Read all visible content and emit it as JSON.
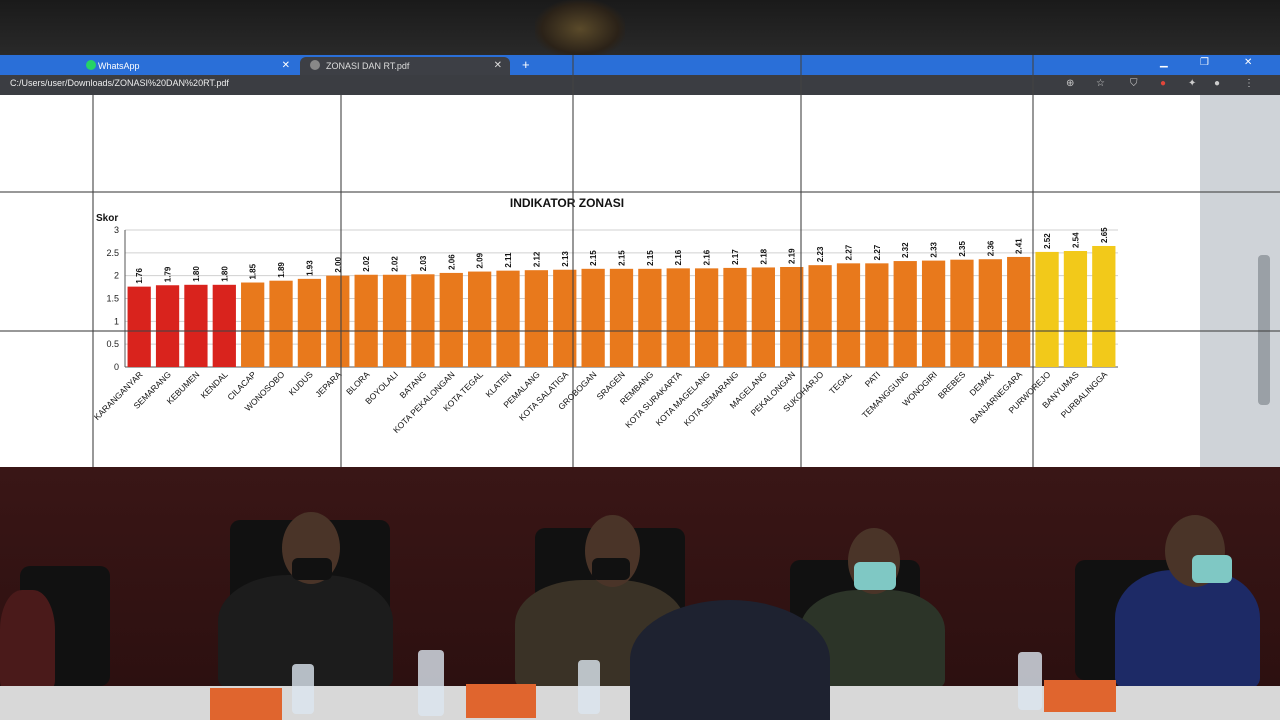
{
  "browser": {
    "tabs": [
      {
        "label": "WhatsApp"
      },
      {
        "label": "ZONASI DAN RT.pdf"
      }
    ],
    "url": "C:/Users/user/Downloads/ZONASI%20DAN%20RT.pdf",
    "new_tab_symbol": "+"
  },
  "chart_data": {
    "type": "bar",
    "title": "INDIKATOR ZONASI",
    "ylabel": "Skor",
    "ylim": [
      0,
      3
    ],
    "yticks": [
      "0",
      "0.5",
      "1",
      "1.5",
      "2",
      "2.5",
      "3"
    ],
    "categories": [
      "KARANGANYAR",
      "SEMARANG",
      "KEBUMEN",
      "KENDAL",
      "CILACAP",
      "WONOSOBO",
      "KUDUS",
      "JEPARA",
      "BLORA",
      "BOYOLALI",
      "BATANG",
      "KOTA PEKALONGAN",
      "KOTA TEGAL",
      "KLATEN",
      "PEMALANG",
      "KOTA SALATIGA",
      "GROBOGAN",
      "SRAGEN",
      "REMBANG",
      "KOTA SURAKARTA",
      "KOTA MAGELANG",
      "KOTA SEMARANG",
      "MAGELANG",
      "PEKALONGAN",
      "SUKOHARJO",
      "TEGAL",
      "PATI",
      "TEMANGGUNG",
      "WONOGIRI",
      "BREBES",
      "DEMAK",
      "BANJARNEGARA",
      "PURWOREJO",
      "BANYUMAS",
      "PURBALINGGA"
    ],
    "values": [
      1.76,
      1.79,
      1.8,
      1.8,
      1.85,
      1.89,
      1.93,
      2.0,
      2.02,
      2.02,
      2.03,
      2.06,
      2.09,
      2.11,
      2.12,
      2.13,
      2.15,
      2.15,
      2.15,
      2.16,
      2.16,
      2.17,
      2.18,
      2.19,
      2.23,
      2.27,
      2.27,
      2.32,
      2.33,
      2.35,
      2.36,
      2.41,
      2.52,
      2.54,
      2.65
    ],
    "data_labels": [
      "1.76",
      "1.79",
      "1.80",
      "1.80",
      "1.85",
      "1.89",
      "1.93",
      "2.00",
      "2.02",
      "2.02",
      "2.03",
      "2.06",
      "2.09",
      "2.11",
      "2.12",
      "2.13",
      "2.15",
      "2.15",
      "2.15",
      "2.16",
      "2.16",
      "2.17",
      "2.18",
      "2.19",
      "2.23",
      "2.27",
      "2.27",
      "2.32",
      "2.33",
      "2.35",
      "2.36",
      "2.41",
      "2.52",
      "2.54",
      "2.65"
    ],
    "colors": {
      "red": "#d9231d",
      "orange": "#e8791c",
      "yellow": "#f2c91a"
    },
    "bar_colors": [
      "red",
      "red",
      "red",
      "red",
      "orange",
      "orange",
      "orange",
      "orange",
      "orange",
      "orange",
      "orange",
      "orange",
      "orange",
      "orange",
      "orange",
      "orange",
      "orange",
      "orange",
      "orange",
      "orange",
      "orange",
      "orange",
      "orange",
      "orange",
      "orange",
      "orange",
      "orange",
      "orange",
      "orange",
      "orange",
      "orange",
      "orange",
      "yellow",
      "yellow",
      "yellow"
    ],
    "grid": true
  }
}
